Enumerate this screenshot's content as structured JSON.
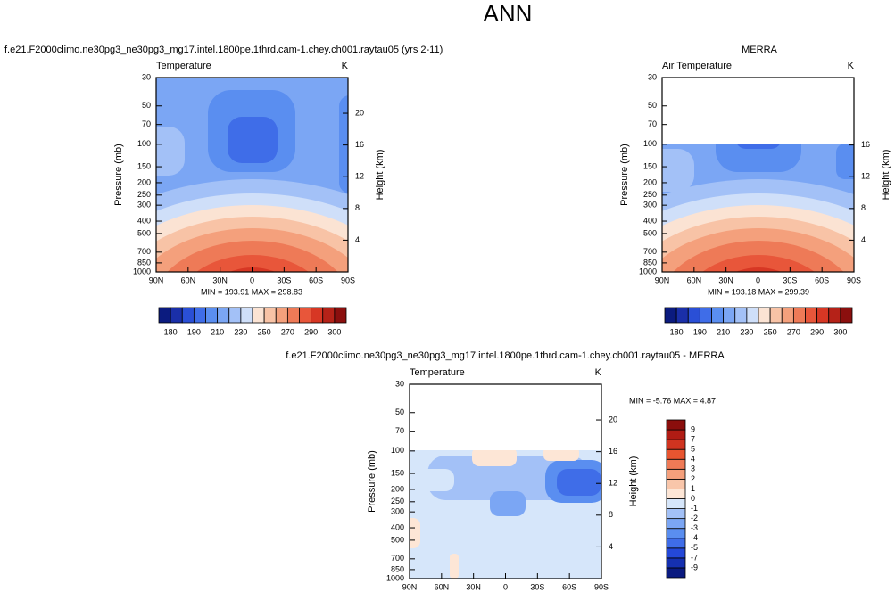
{
  "title": "ANN",
  "chart_data": [
    {
      "type": "contour",
      "title": "f.e21.F2000climo.ne30pg3_ne30pg3_mg17.intel.1800pe.1thrd.cam-1.chey.ch001.raytau05 (yrs 2-11)",
      "left_string": "Temperature",
      "units": "K",
      "ylabel": "Pressure (mb)",
      "y2label": "Height (km)",
      "xlim": [
        90,
        -90
      ],
      "xticks": [
        {
          "value": 90,
          "label": "90N"
        },
        {
          "value": 60,
          "label": "60N"
        },
        {
          "value": 30,
          "label": "30N"
        },
        0,
        {
          "value": -30,
          "label": "30S"
        },
        {
          "value": -60,
          "label": "60S"
        },
        {
          "value": -90,
          "label": "90S"
        }
      ],
      "ylim": [
        1000,
        30
      ],
      "log_y": true,
      "yticks": [
        30,
        50,
        70,
        100,
        150,
        200,
        250,
        300,
        400,
        500,
        700,
        850,
        1000
      ],
      "y2lim": [
        0,
        24.5
      ],
      "y2ticks": [
        4,
        8,
        12,
        16,
        20
      ],
      "stats": "MIN = 193.91  MAX = 298.83",
      "colorbar": {
        "orientation": "horizontal",
        "label_step": 2,
        "levels": [
          180,
          185,
          190,
          200,
          210,
          220,
          230,
          240,
          250,
          260,
          270,
          280,
          290,
          295,
          300
        ],
        "colors": [
          "#0b1b7f",
          "#1a2fa8",
          "#2a4fd6",
          "#3f6de8",
          "#5a8ef0",
          "#7ba6f4",
          "#a3c1f7",
          "#cfdff9",
          "#fbe3d3",
          "#f8c3a6",
          "#f4a07c",
          "#ee7a57",
          "#e8563a",
          "#d73724",
          "#b52218",
          "#8b0f0e"
        ]
      }
    },
    {
      "type": "contour",
      "title": "MERRA",
      "left_string": "Air Temperature",
      "units": "K",
      "ylabel": "Pressure (mb)",
      "y2label": "Height (km)",
      "xlim": [
        90,
        -90
      ],
      "xticks": [
        {
          "value": 90,
          "label": "90N"
        },
        {
          "value": 60,
          "label": "60N"
        },
        {
          "value": 30,
          "label": "30N"
        },
        0,
        {
          "value": -30,
          "label": "30S"
        },
        {
          "value": -60,
          "label": "60S"
        },
        {
          "value": -90,
          "label": "90S"
        }
      ],
      "ylim": [
        1000,
        30
      ],
      "log_y": true,
      "yticks": [
        30,
        50,
        70,
        100,
        150,
        200,
        250,
        300,
        400,
        500,
        700,
        850,
        1000
      ],
      "y2lim": [
        0,
        24.5
      ],
      "y2ticks": [
        4,
        8,
        12,
        16
      ],
      "stats": "MIN = 193.18  MAX = 299.39",
      "colorbar": {
        "orientation": "horizontal",
        "label_step": 2,
        "levels": [
          180,
          185,
          190,
          200,
          210,
          220,
          230,
          240,
          250,
          260,
          270,
          280,
          290,
          295,
          300
        ],
        "colors": [
          "#0b1b7f",
          "#1a2fa8",
          "#2a4fd6",
          "#3f6de8",
          "#5a8ef0",
          "#7ba6f4",
          "#a3c1f7",
          "#cfdff9",
          "#fbe3d3",
          "#f8c3a6",
          "#f4a07c",
          "#ee7a57",
          "#e8563a",
          "#d73724",
          "#b52218",
          "#8b0f0e"
        ]
      }
    },
    {
      "type": "contour",
      "title": "f.e21.F2000climo.ne30pg3_ne30pg3_mg17.intel.1800pe.1thrd.cam-1.chey.ch001.raytau05 - MERRA",
      "left_string": "Temperature",
      "units": "K",
      "ylabel": "Pressure (mb)",
      "y2label": "Height (km)",
      "xlim": [
        90,
        -90
      ],
      "xticks": [
        {
          "value": 90,
          "label": "90N"
        },
        {
          "value": 60,
          "label": "60N"
        },
        {
          "value": 30,
          "label": "30N"
        },
        0,
        {
          "value": -30,
          "label": "30S"
        },
        {
          "value": -60,
          "label": "60S"
        },
        {
          "value": -90,
          "label": "90S"
        }
      ],
      "ylim": [
        1000,
        30
      ],
      "log_y": true,
      "yticks": [
        30,
        50,
        70,
        100,
        150,
        200,
        250,
        300,
        400,
        500,
        700,
        850,
        1000
      ],
      "y2lim": [
        0,
        24.5
      ],
      "y2ticks": [
        4,
        8,
        12,
        16,
        20
      ],
      "stats": "MIN =  -5.76  MAX =   4.87",
      "colorbar": {
        "orientation": "vertical",
        "label_step": 1,
        "levels": [
          -9,
          -7,
          -5,
          -4,
          -3,
          -2,
          -1,
          0,
          1,
          2,
          3,
          4,
          5,
          7,
          9
        ],
        "colors": [
          "#0a1a80",
          "#1530b0",
          "#2448d8",
          "#3f6de8",
          "#5a8ef0",
          "#7ba6f4",
          "#a3c1f7",
          "#d6e6fa",
          "#fde6d6",
          "#f9c6aa",
          "#f5a07c",
          "#ef7a56",
          "#e85530",
          "#d03420",
          "#b01c14",
          "#8a0e0c"
        ]
      }
    }
  ]
}
